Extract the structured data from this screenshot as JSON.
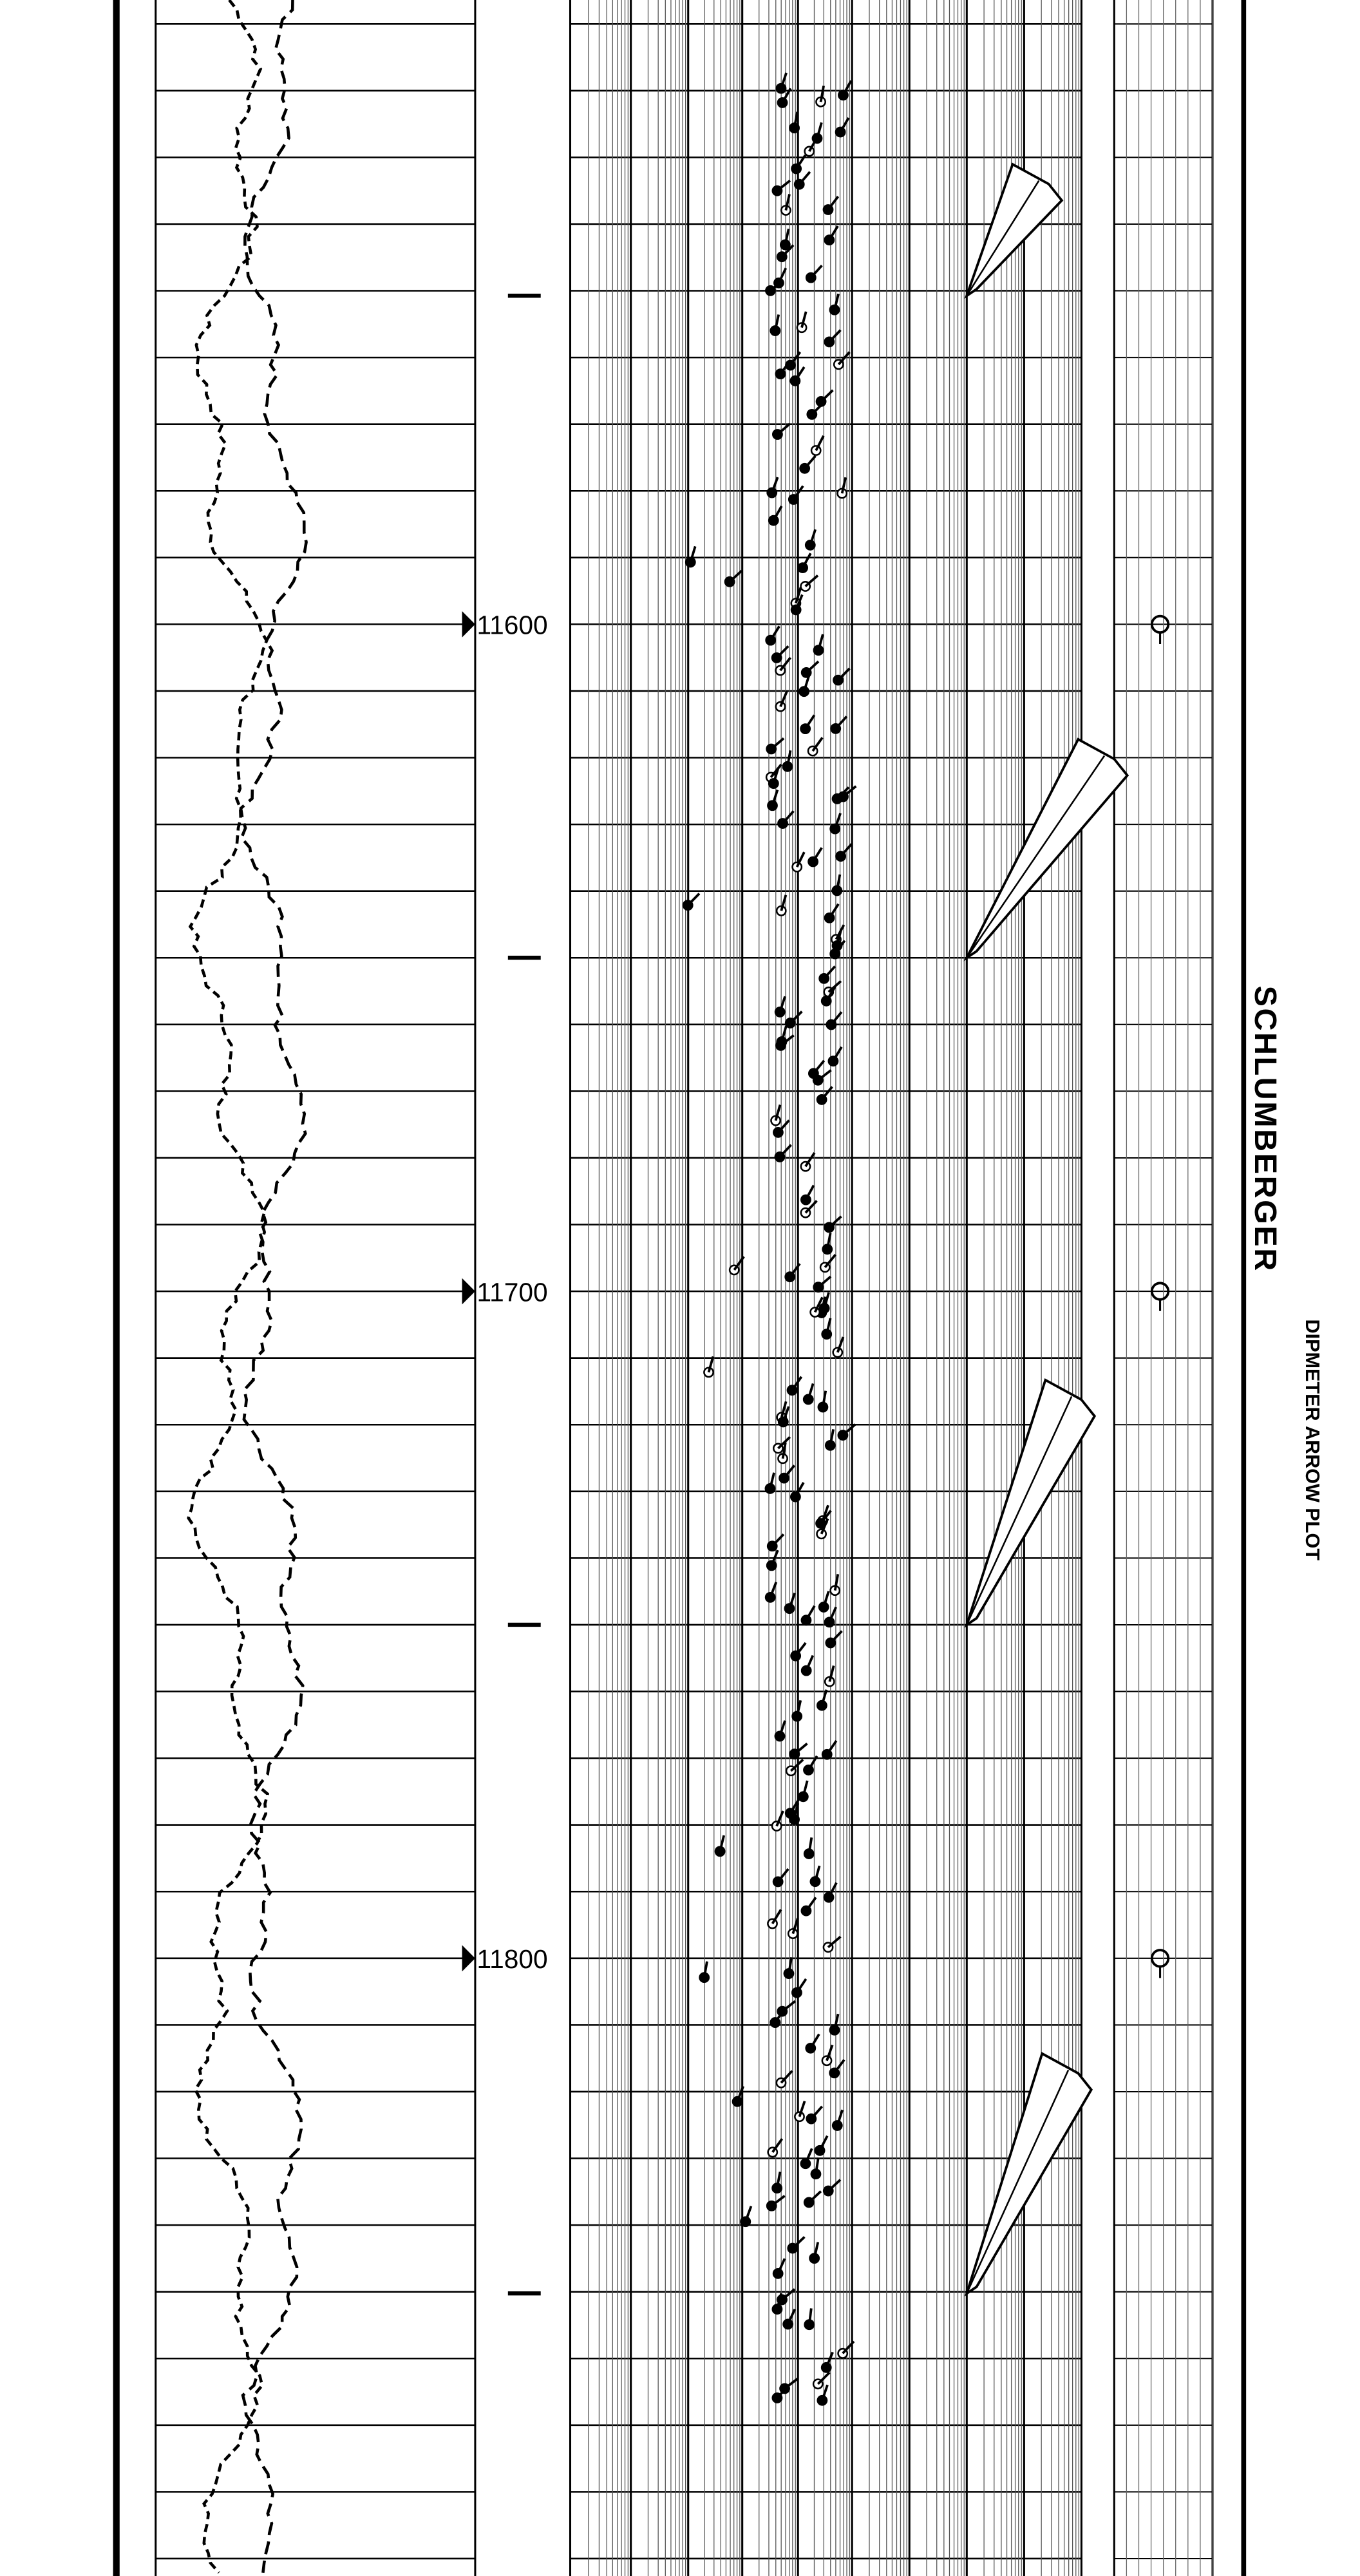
{
  "header": {
    "company": "SCHLUMBERGER",
    "title": "DIPMETER ARROW PLOT"
  },
  "depth_marks": [
    "11600",
    "11700",
    "11800"
  ]
}
